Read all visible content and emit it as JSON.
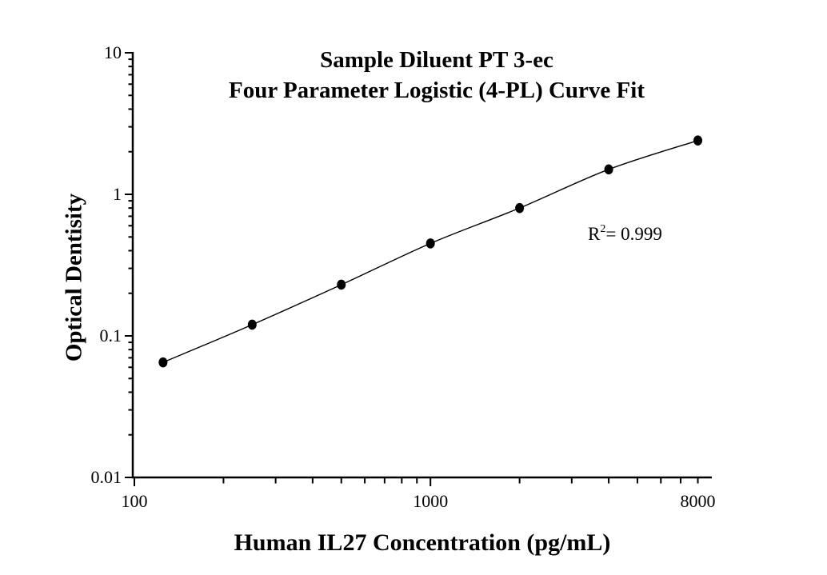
{
  "figure": {
    "title": {
      "line1": "Sample Diluent PT 3-ec",
      "line2": "Four Parameter Logistic (4-PL) Curve Fit"
    },
    "annotation": {
      "base": "R",
      "sup": "2",
      "rest": "= 0.999"
    },
    "colors": {
      "ink": "#000000",
      "background": "#ffffff"
    }
  },
  "chart_data": {
    "type": "scatter",
    "title": "Sample Diluent PT 3-ec",
    "subtitle": "Four Parameter Logistic (4-PL) Curve Fit",
    "xlabel": "Human IL27 Concentration (pg/mL)",
    "ylabel": "Optical Dentisity",
    "x_scale": "log",
    "y_scale": "log",
    "xlim": [
      98,
      8900
    ],
    "ylim": [
      0.01,
      10
    ],
    "grid": false,
    "legend": "none",
    "fit_type": "4-PL",
    "r_squared": 0.999,
    "x": [
      125,
      250,
      500,
      1000,
      2000,
      4000,
      8000
    ],
    "y": [
      0.065,
      0.12,
      0.23,
      0.45,
      0.8,
      1.5,
      2.4
    ],
    "x_axis": {
      "major_ticks": [
        100,
        1000
      ],
      "minor_ticks": [
        200,
        300,
        400,
        500,
        600,
        700,
        800,
        900,
        2000,
        3000,
        4000,
        5000,
        6000,
        7000,
        8000
      ],
      "tick_labels": [
        {
          "value": 100,
          "text": "100"
        },
        {
          "value": 1000,
          "text": "1000"
        },
        {
          "value": 8000,
          "text": "8000"
        }
      ]
    },
    "y_axis": {
      "major_ticks": [
        10,
        1,
        0.1,
        0.01
      ],
      "minor_ticks": [
        0.02,
        0.03,
        0.04,
        0.05,
        0.06,
        0.07,
        0.08,
        0.09,
        0.2,
        0.3,
        0.4,
        0.5,
        0.6,
        0.7,
        0.8,
        0.9,
        2,
        3,
        4,
        5,
        6,
        7,
        8,
        9
      ],
      "tick_labels": [
        {
          "value": 10,
          "text": "10"
        },
        {
          "value": 1,
          "text": "1"
        },
        {
          "value": 0.1,
          "text": "0.1"
        },
        {
          "value": 0.01,
          "text": "0.01"
        }
      ]
    }
  }
}
